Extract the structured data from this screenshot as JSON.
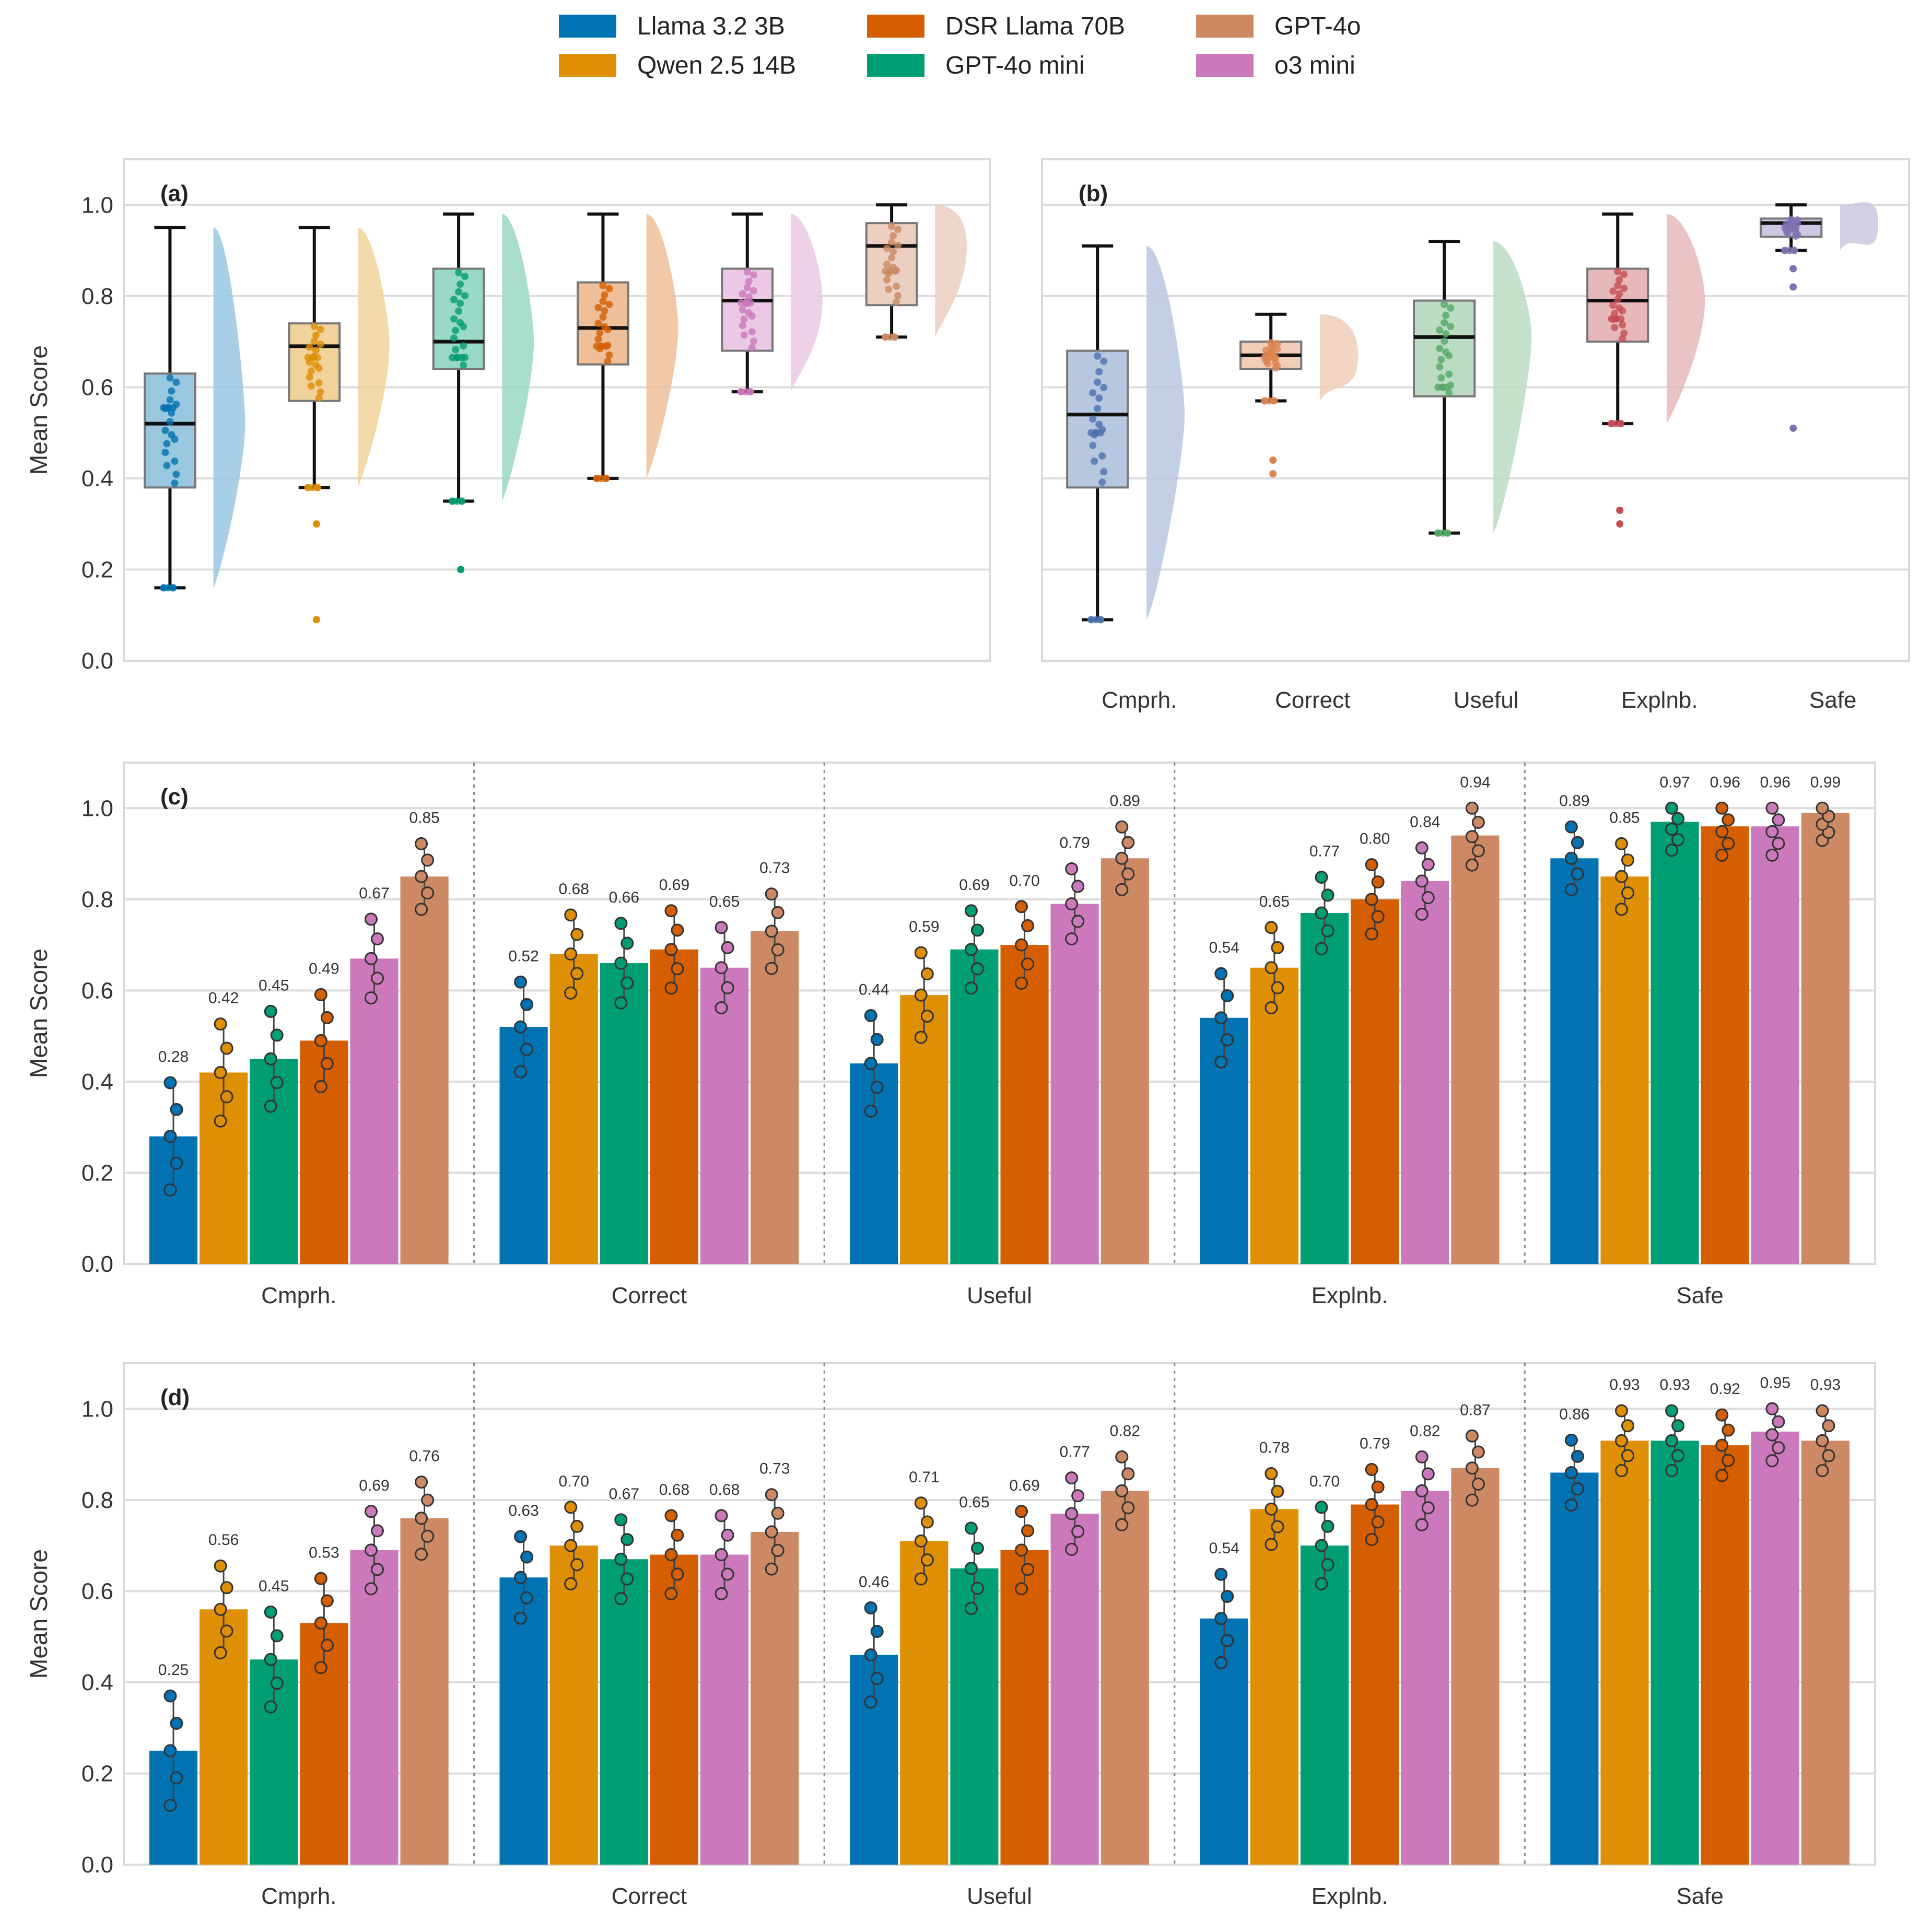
{
  "legend": [
    {
      "name": "Llama 3.2 3B",
      "color": "#0173b2"
    },
    {
      "name": "Qwen 2.5 14B",
      "color": "#de8f05"
    },
    {
      "name": "DSR Llama 70B",
      "color": "#d55e00"
    },
    {
      "name": "GPT-4o mini",
      "color": "#029e73"
    },
    {
      "name": "GPT-4o",
      "color": "#cc8963"
    },
    {
      "name": "o3 mini",
      "color": "#cc78bc"
    }
  ],
  "chart_data": [
    {
      "type": "box",
      "panel": "(a)",
      "ylabel": "Mean Score",
      "ylim": [
        0,
        1.1
      ],
      "yticks": [
        "0.0",
        "0.2",
        "0.4",
        "0.6",
        "0.8",
        "1.0"
      ],
      "grid": true,
      "series": [
        {
          "name": "Llama 3.2 3B",
          "color": "#0173b2",
          "min": 0.16,
          "q1": 0.38,
          "median": 0.52,
          "q3": 0.63,
          "max": 0.95
        },
        {
          "name": "Qwen 2.5 14B",
          "color": "#de8f05",
          "min": 0.38,
          "q1": 0.57,
          "median": 0.69,
          "q3": 0.74,
          "max": 0.95,
          "outliers": [
            0.3,
            0.09
          ]
        },
        {
          "name": "GPT-4o mini",
          "color": "#029e73",
          "min": 0.35,
          "q1": 0.64,
          "median": 0.7,
          "q3": 0.86,
          "max": 0.98,
          "outliers": [
            0.2
          ]
        },
        {
          "name": "DSR Llama 70B",
          "color": "#d55e00",
          "min": 0.4,
          "q1": 0.65,
          "median": 0.73,
          "q3": 0.83,
          "max": 0.98
        },
        {
          "name": "o3 mini",
          "color": "#cc78bc",
          "min": 0.59,
          "q1": 0.68,
          "median": 0.79,
          "q3": 0.86,
          "max": 0.98
        },
        {
          "name": "GPT-4o",
          "color": "#cc8963",
          "min": 0.71,
          "q1": 0.78,
          "median": 0.91,
          "q3": 0.96,
          "max": 1.0
        }
      ]
    },
    {
      "type": "box",
      "panel": "(b)",
      "ylim": [
        0,
        1.1
      ],
      "categories": [
        "Cmprh.",
        "Correct",
        "Useful",
        "Explnb.",
        "Safe"
      ],
      "grid": true,
      "series": [
        {
          "name": "Cmprh.",
          "color": "#4c72b0",
          "min": 0.09,
          "q1": 0.38,
          "median": 0.54,
          "q3": 0.68,
          "max": 0.91
        },
        {
          "name": "Correct",
          "color": "#dd8452",
          "min": 0.57,
          "q1": 0.64,
          "median": 0.67,
          "q3": 0.7,
          "max": 0.76,
          "outliers": [
            0.44,
            0.41
          ]
        },
        {
          "name": "Useful",
          "color": "#55a868",
          "min": 0.28,
          "q1": 0.58,
          "median": 0.71,
          "q3": 0.79,
          "max": 0.92
        },
        {
          "name": "Explnb.",
          "color": "#c44e52",
          "min": 0.52,
          "q1": 0.7,
          "median": 0.79,
          "q3": 0.86,
          "max": 0.98,
          "outliers": [
            0.33,
            0.3
          ]
        },
        {
          "name": "Safe",
          "color": "#8172b3",
          "min": 0.9,
          "q1": 0.93,
          "median": 0.96,
          "q3": 0.97,
          "max": 1.0,
          "outliers": [
            0.86,
            0.82,
            0.51
          ]
        }
      ]
    },
    {
      "type": "bar",
      "panel": "(c)",
      "ylabel": "Mean Score",
      "ylim": [
        0,
        1.1
      ],
      "yticks": [
        "0.0",
        "0.2",
        "0.4",
        "0.6",
        "0.8",
        "1.0"
      ],
      "categories": [
        "Cmprh.",
        "Correct",
        "Useful",
        "Explnb.",
        "Safe"
      ],
      "grid": true,
      "series": [
        {
          "name": "Llama 3.2 3B",
          "values": [
            0.28,
            0.52,
            0.44,
            0.54,
            0.89
          ],
          "labels": [
            "0.28",
            "0.52",
            "0.44",
            "0.54",
            "0.89"
          ]
        },
        {
          "name": "Qwen 2.5 14B",
          "values": [
            0.42,
            0.68,
            0.59,
            0.65,
            0.85
          ],
          "labels": [
            "0.42",
            "0.68",
            "0.59",
            "0.65",
            "0.85"
          ]
        },
        {
          "name": "GPT-4o mini",
          "values": [
            0.45,
            0.66,
            0.69,
            0.77,
            0.97
          ],
          "labels": [
            "0.45",
            "0.66",
            "0.69",
            "0.77",
            "0.97"
          ]
        },
        {
          "name": "DSR Llama 70B",
          "values": [
            0.49,
            0.69,
            0.7,
            0.8,
            0.96
          ],
          "labels": [
            "0.49",
            "0.69",
            "0.70",
            "0.80",
            "0.96"
          ]
        },
        {
          "name": "o3 mini",
          "values": [
            0.67,
            0.65,
            0.79,
            0.84,
            0.96
          ],
          "labels": [
            "0.67",
            "0.65",
            "0.79",
            "0.84",
            "0.96"
          ]
        },
        {
          "name": "GPT-4o",
          "values": [
            0.85,
            0.73,
            0.89,
            0.94,
            0.99
          ],
          "labels": [
            "0.85",
            "0.73",
            "0.89",
            "0.94",
            "0.99"
          ]
        }
      ]
    },
    {
      "type": "bar",
      "panel": "(d)",
      "ylabel": "Mean Score",
      "ylim": [
        0,
        1.1
      ],
      "yticks": [
        "0.0",
        "0.2",
        "0.4",
        "0.6",
        "0.8",
        "1.0"
      ],
      "categories": [
        "Cmprh.",
        "Correct",
        "Useful",
        "Explnb.",
        "Safe"
      ],
      "grid": true,
      "series": [
        {
          "name": "Llama 3.2 3B",
          "values": [
            0.25,
            0.63,
            0.46,
            0.54,
            0.86
          ],
          "labels": [
            "0.25",
            "0.63",
            "0.46",
            "0.54",
            "0.86"
          ]
        },
        {
          "name": "Qwen 2.5 14B",
          "values": [
            0.56,
            0.7,
            0.71,
            0.78,
            0.93
          ],
          "labels": [
            "0.56",
            "0.70",
            "0.71",
            "0.78",
            "0.93"
          ]
        },
        {
          "name": "GPT-4o mini",
          "values": [
            0.45,
            0.67,
            0.65,
            0.7,
            0.93
          ],
          "labels": [
            "0.45",
            "0.67",
            "0.65",
            "0.70",
            "0.93"
          ]
        },
        {
          "name": "DSR Llama 70B",
          "values": [
            0.53,
            0.68,
            0.69,
            0.79,
            0.92
          ],
          "labels": [
            "0.53",
            "0.68",
            "0.69",
            "0.79",
            "0.92"
          ]
        },
        {
          "name": "o3 mini",
          "values": [
            0.69,
            0.68,
            0.77,
            0.82,
            0.95
          ],
          "labels": [
            "0.69",
            "0.68",
            "0.77",
            "0.82",
            "0.95"
          ]
        },
        {
          "name": "GPT-4o",
          "values": [
            0.76,
            0.73,
            0.82,
            0.87,
            0.93
          ],
          "labels": [
            "0.76",
            "0.73",
            "0.82",
            "0.87",
            "0.93"
          ]
        }
      ]
    }
  ]
}
